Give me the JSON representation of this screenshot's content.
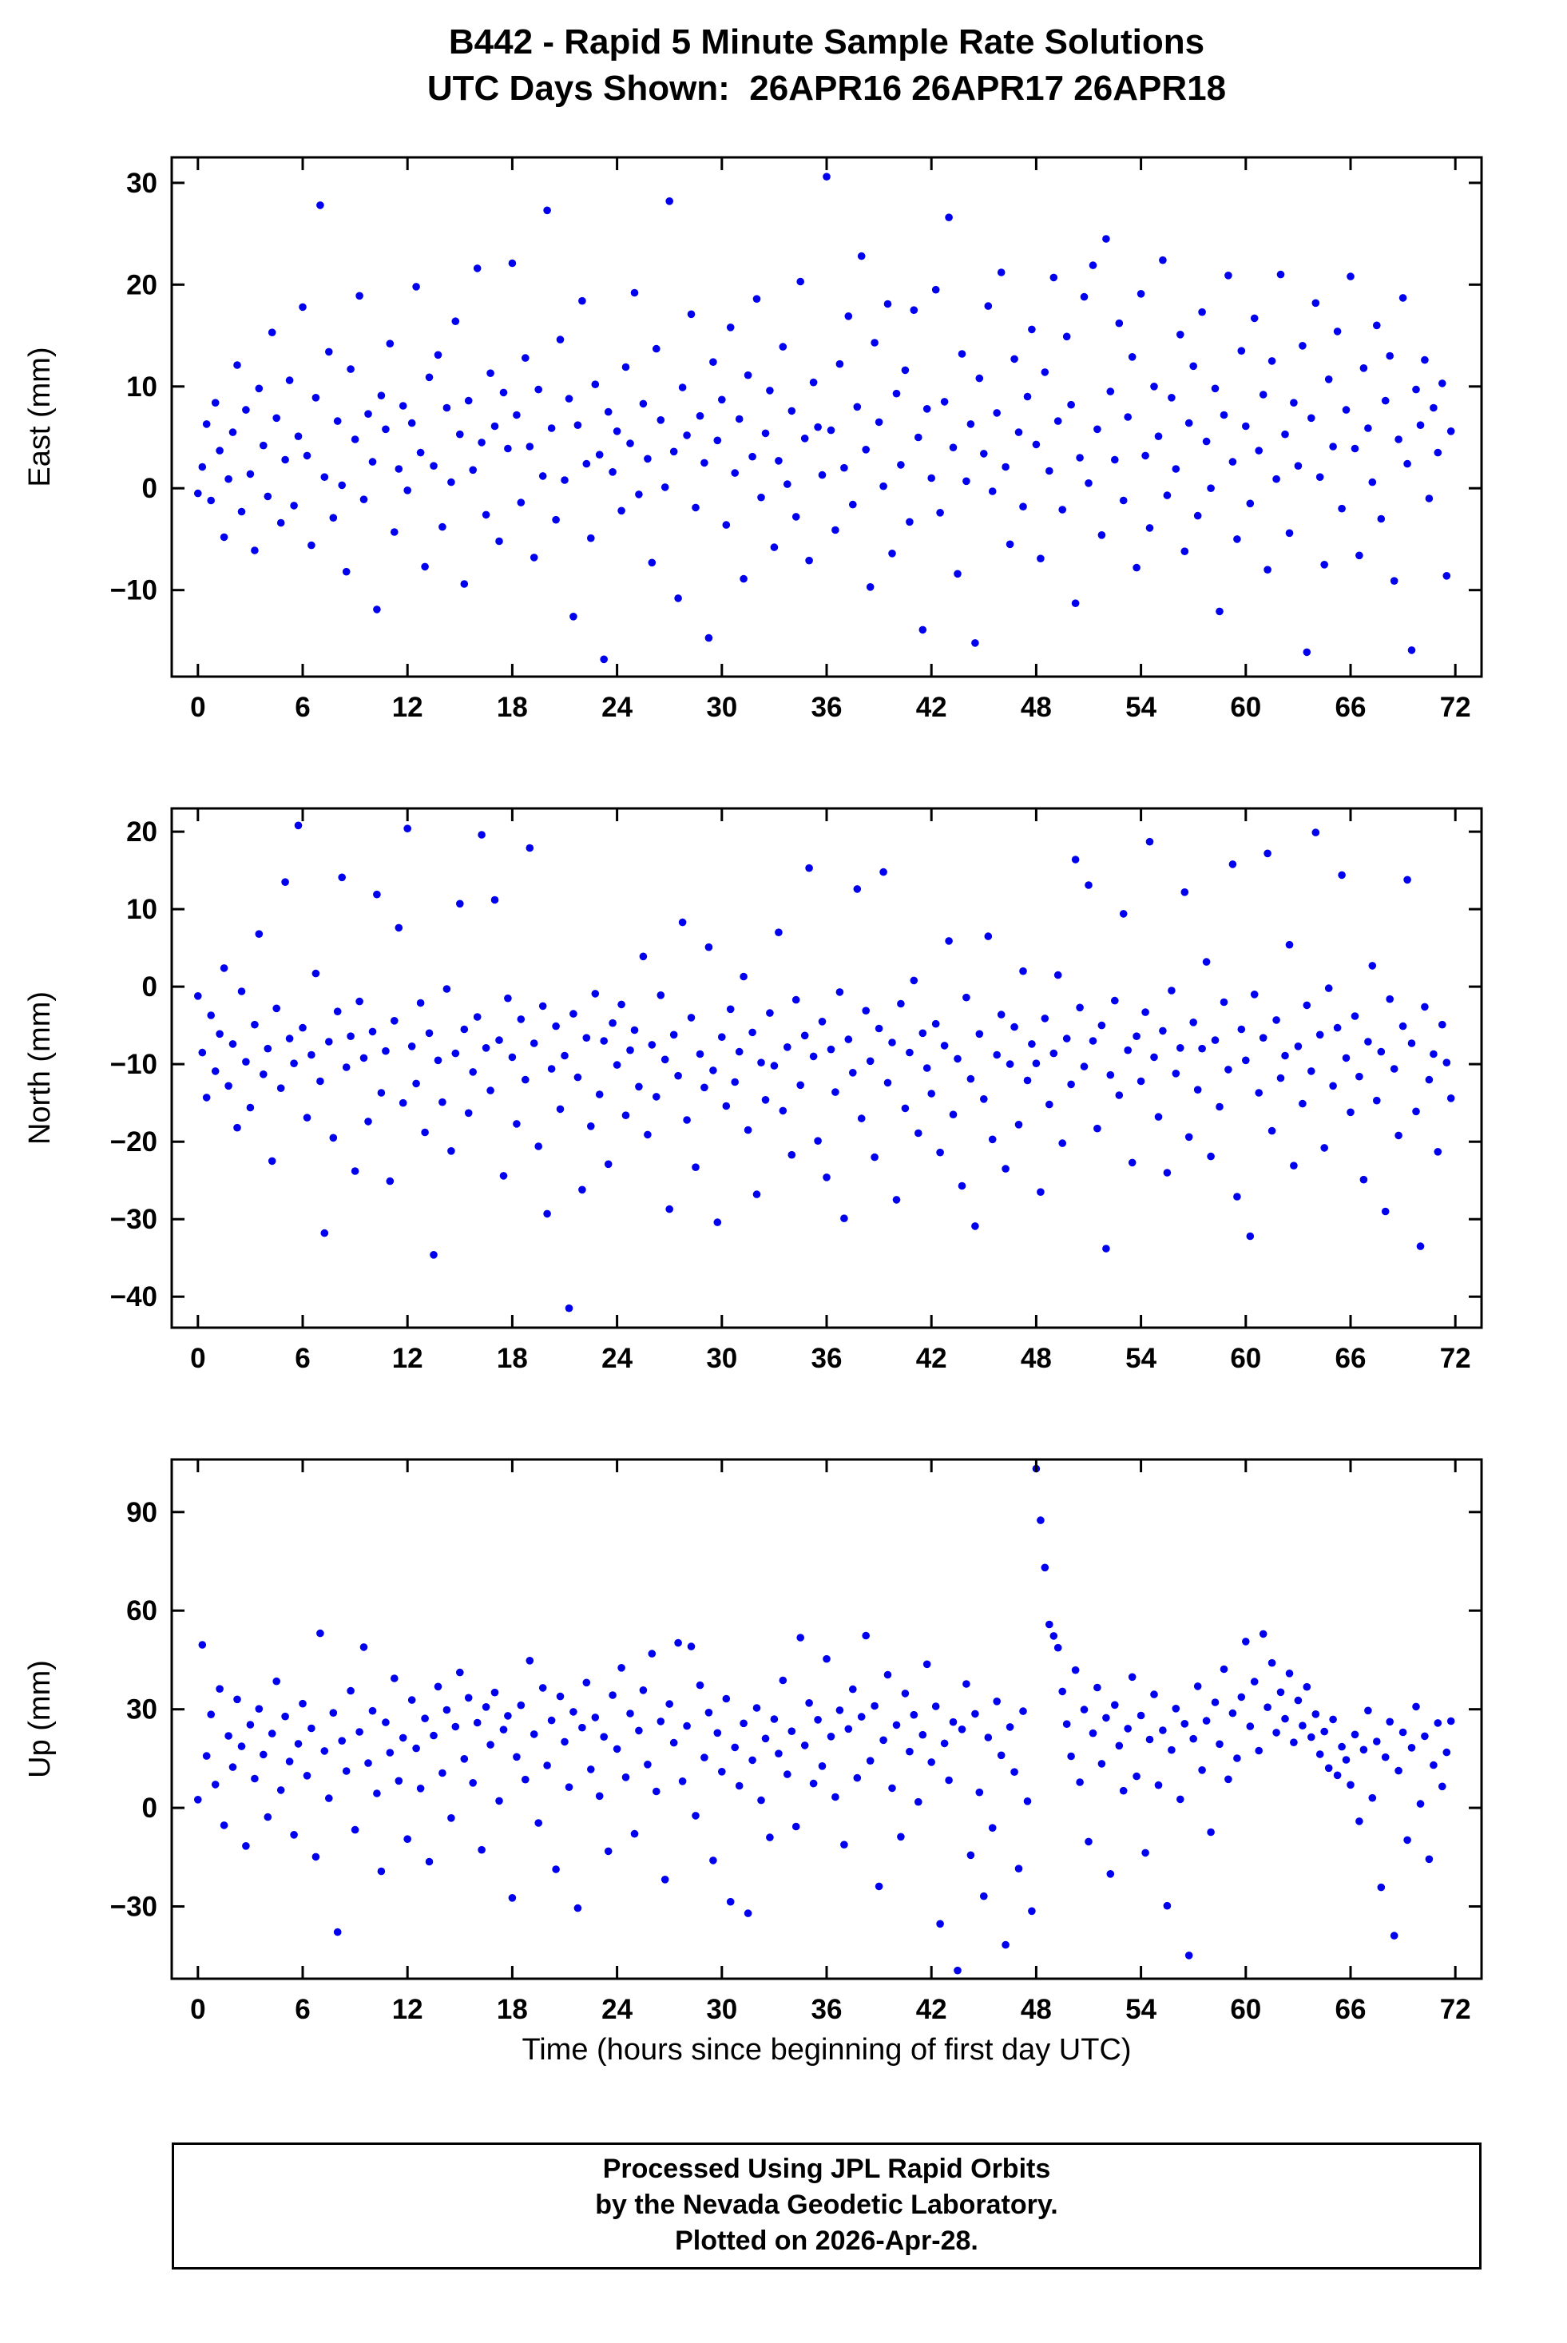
{
  "header": {
    "title_line1": "B442 - Rapid 5 Minute Sample Rate Solutions",
    "title_line2": "UTC Days Shown:  26APR16 26APR17 26APR18"
  },
  "xaxis": {
    "label": "Time (hours since beginning of first day UTC)",
    "ticks": [
      0,
      6,
      12,
      18,
      24,
      30,
      36,
      42,
      48,
      54,
      60,
      66,
      72
    ],
    "lim": [
      -1.5,
      73.5
    ]
  },
  "footer": {
    "line1": "Processed Using JPL Rapid Orbits",
    "line2": "by the Nevada Geodetic Laboratory.",
    "line3": "Plotted on 2026-Apr-28."
  },
  "style": {
    "point_color": "#0000ee",
    "frame_color": "#000000",
    "background": "#ffffff"
  },
  "chart_data": [
    {
      "type": "scatter",
      "name": "east",
      "ylabel": "East (mm)",
      "yticks": [
        -10,
        0,
        10,
        20,
        30
      ],
      "ylim": [
        -18.5,
        32.5
      ],
      "x_start": 0,
      "x_step": 0.25,
      "values": [
        -0.5,
        2.1,
        6.3,
        -1.2,
        8.4,
        3.7,
        -4.8,
        0.9,
        5.5,
        12.1,
        -2.3,
        7.7,
        1.4,
        -6.1,
        9.8,
        4.2,
        -0.8,
        15.3,
        6.9,
        -3.4,
        2.8,
        10.6,
        -1.7,
        5.1,
        17.8,
        3.2,
        -5.6,
        8.9,
        27.8,
        1.1,
        13.4,
        -2.9,
        6.6,
        0.3,
        -8.2,
        11.7,
        4.8,
        18.9,
        -1.1,
        7.3,
        2.6,
        -11.9,
        9.1,
        5.8,
        14.2,
        -4.3,
        1.9,
        8.1,
        -0.2,
        6.4,
        19.8,
        3.5,
        -7.7,
        10.9,
        2.2,
        13.1,
        -3.8,
        7.9,
        0.6,
        16.4,
        5.3,
        -9.4,
        8.6,
        1.8,
        21.6,
        4.5,
        -2.6,
        11.3,
        6.1,
        -5.2,
        9.4,
        3.9,
        22.1,
        7.2,
        -1.4,
        12.8,
        4.1,
        -6.8,
        9.7,
        1.2,
        27.3,
        5.9,
        -3.1,
        14.6,
        0.8,
        8.8,
        -12.6,
        6.2,
        18.4,
        2.4,
        -4.9,
        10.2,
        3.3,
        -16.8,
        7.5,
        1.6,
        5.6,
        -2.2,
        11.9,
        4.4,
        19.2,
        -0.6,
        8.3,
        2.9,
        -7.3,
        13.7,
        6.7,
        0.1,
        28.2,
        3.6,
        -10.8,
        9.9,
        5.2,
        17.1,
        -1.9,
        7.1,
        2.5,
        -14.7,
        12.4,
        4.7,
        8.7,
        -3.6,
        15.8,
        1.5,
        6.8,
        -8.9,
        11.1,
        3.1,
        18.6,
        -0.9,
        5.4,
        9.6,
        -5.8,
        2.7,
        13.9,
        0.4,
        7.6,
        -2.8,
        20.3,
        4.9,
        -7.1,
        10.4,
        6.0,
        1.3,
        30.6,
        5.7,
        -4.1,
        12.2,
        2.0,
        16.9,
        -1.6,
        8.0,
        22.8,
        3.8,
        -9.7,
        14.3,
        6.5,
        0.2,
        18.1,
        -6.4,
        9.3,
        2.3,
        11.6,
        -3.3,
        17.5,
        5.0,
        -13.9,
        7.8,
        1.0,
        19.5,
        -2.4,
        8.5,
        26.6,
        4.0,
        -8.4,
        13.2,
        0.7,
        6.3,
        -15.2,
        10.8,
        3.4,
        17.9,
        -0.3,
        7.4,
        21.2,
        2.1,
        -5.5,
        12.7,
        5.5,
        -1.8,
        9.0,
        15.6,
        4.3,
        -6.9,
        11.4,
        1.7,
        20.7,
        6.6,
        -2.1,
        14.9,
        8.2,
        -11.3,
        3.0,
        18.8,
        0.5,
        21.9,
        5.8,
        -4.6,
        24.5,
        9.5,
        2.8,
        16.2,
        -1.2,
        7.0,
        12.9,
        -7.8,
        19.1,
        3.2,
        -3.9,
        10.0,
        5.1,
        22.4,
        -0.7,
        8.9,
        1.9,
        15.1,
        -6.2,
        6.4,
        12.0,
        -2.7,
        17.3,
        4.6,
        0.0,
        9.8,
        -12.1,
        7.2,
        20.9,
        2.6,
        -5.0,
        13.5,
        6.1,
        -1.5,
        16.7,
        3.7,
        9.2,
        -8.0,
        12.5,
        0.9,
        21.0,
        5.3,
        -4.4,
        8.4,
        2.2,
        14.0,
        -16.1,
        6.9,
        18.2,
        1.1,
        -7.5,
        10.7,
        4.1,
        15.4,
        -2.0,
        7.7,
        20.8,
        3.9,
        -6.6,
        11.8,
        5.9,
        0.6,
        16.0,
        -3.0,
        8.6,
        13.0,
        -9.1,
        4.8,
        18.7,
        2.4,
        -15.9,
        9.7,
        6.2,
        12.6,
        -1.0,
        7.9,
        3.5,
        10.3,
        -8.6,
        5.6
      ]
    },
    {
      "type": "scatter",
      "name": "north",
      "ylabel": "North (mm)",
      "yticks": [
        -40,
        -30,
        -20,
        -10,
        0,
        10,
        20
      ],
      "ylim": [
        -44,
        23
      ],
      "x_start": 0,
      "x_step": 0.25,
      "values": [
        -1.2,
        -8.5,
        -14.3,
        -3.7,
        -10.9,
        -6.1,
        2.4,
        -12.8,
        -7.4,
        -18.2,
        -0.6,
        -9.7,
        -15.6,
        -4.9,
        6.8,
        -11.3,
        -8.0,
        -22.5,
        -2.8,
        -13.1,
        13.5,
        -6.7,
        -9.9,
        20.8,
        -5.3,
        -16.9,
        -8.8,
        1.7,
        -12.2,
        -31.8,
        -7.1,
        -19.5,
        -3.2,
        14.1,
        -10.4,
        -6.4,
        -23.8,
        -1.9,
        -9.2,
        -17.4,
        -5.8,
        11.9,
        -13.7,
        -8.3,
        -25.1,
        -4.4,
        7.6,
        -15.0,
        20.4,
        -7.7,
        -12.5,
        -2.1,
        -18.8,
        -6.0,
        -34.6,
        -9.5,
        -14.9,
        -0.3,
        -21.2,
        -8.6,
        10.7,
        -5.5,
        -16.3,
        -11.0,
        -3.9,
        19.6,
        -7.9,
        -13.4,
        11.2,
        -6.9,
        -24.4,
        -1.5,
        -9.1,
        -17.7,
        -4.2,
        -12.0,
        17.9,
        -7.3,
        -20.6,
        -2.5,
        -29.3,
        -10.6,
        -5.1,
        -15.8,
        -8.9,
        -41.5,
        -3.5,
        -11.7,
        -26.2,
        -6.6,
        -18.0,
        -0.9,
        -13.9,
        -7.0,
        -22.9,
        -4.7,
        -10.1,
        -2.3,
        -16.6,
        -8.2,
        -5.6,
        -12.9,
        3.9,
        -19.1,
        -7.5,
        -14.2,
        -1.1,
        -9.4,
        -28.7,
        -6.2,
        -11.5,
        8.3,
        -17.2,
        -4.0,
        -23.3,
        -8.7,
        -13.0,
        5.1,
        -10.8,
        -30.4,
        -6.5,
        -15.4,
        -2.9,
        -12.3,
        -8.4,
        1.3,
        -18.5,
        -5.9,
        -26.8,
        -9.8,
        -14.6,
        -3.4,
        -10.2,
        7.0,
        -16.0,
        -7.8,
        -21.7,
        -1.7,
        -12.7,
        -6.3,
        15.3,
        -9.0,
        -19.9,
        -4.5,
        -24.6,
        -8.1,
        -13.6,
        -0.7,
        -29.9,
        -6.8,
        -11.1,
        12.6,
        -17.0,
        -3.1,
        -9.6,
        -22.0,
        -5.4,
        14.8,
        -12.4,
        -7.2,
        -27.5,
        -2.2,
        -15.7,
        -8.5,
        0.8,
        -18.9,
        -6.0,
        -10.5,
        -13.8,
        -4.8,
        -21.4,
        -7.6,
        5.9,
        -16.5,
        -9.3,
        -25.7,
        -1.4,
        -11.9,
        -30.9,
        -6.1,
        -14.5,
        6.5,
        -19.7,
        -8.8,
        -3.6,
        -23.5,
        -10.0,
        -5.2,
        -17.8,
        2.0,
        -12.1,
        -7.4,
        -9.9,
        -26.5,
        -4.1,
        -15.2,
        -8.6,
        1.5,
        -20.2,
        -6.7,
        -12.6,
        16.4,
        -2.7,
        -10.3,
        13.1,
        -7.0,
        -18.3,
        -5.0,
        -33.8,
        -11.4,
        -1.8,
        -14.0,
        9.4,
        -8.2,
        -22.7,
        -6.4,
        -12.2,
        -3.3,
        18.7,
        -9.1,
        -16.8,
        -5.7,
        -24.0,
        -0.5,
        -11.2,
        -7.9,
        12.2,
        -19.4,
        -4.6,
        -13.3,
        -8.0,
        3.2,
        -21.9,
        -6.9,
        -15.5,
        -2.0,
        -10.7,
        15.8,
        -27.1,
        -5.5,
        -9.5,
        -32.2,
        -1.0,
        -13.7,
        -6.6,
        17.2,
        -18.6,
        -4.3,
        -11.8,
        -8.9,
        5.4,
        -23.1,
        -7.7,
        -15.1,
        -2.4,
        -10.9,
        19.9,
        -6.2,
        -20.8,
        -0.2,
        -12.8,
        -5.3,
        14.4,
        -9.2,
        -16.2,
        -3.8,
        -11.6,
        -24.9,
        -7.1,
        2.7,
        -14.7,
        -8.4,
        -29.0,
        -1.6,
        -10.6,
        -19.2,
        -5.1,
        13.8,
        -7.3,
        -16.1,
        -33.5,
        -2.6,
        -12.0,
        -8.7,
        -21.3,
        -4.9,
        -9.8,
        -14.4
      ]
    },
    {
      "type": "scatter",
      "name": "up",
      "ylabel": "Up (mm)",
      "yticks": [
        -30,
        0,
        30,
        60,
        90
      ],
      "ylim": [
        -52,
        106
      ],
      "x_start": 0,
      "x_step": 0.25,
      "values": [
        2.5,
        49.6,
        15.8,
        28.4,
        7.1,
        36.2,
        -5.3,
        21.9,
        12.4,
        33.0,
        18.7,
        -11.6,
        25.3,
        8.9,
        30.1,
        16.2,
        -2.8,
        22.6,
        38.5,
        5.4,
        27.8,
        14.1,
        -8.2,
        19.5,
        31.7,
        9.8,
        24.2,
        -14.9,
        53.1,
        17.3,
        2.9,
        28.9,
        -37.8,
        20.4,
        11.2,
        35.6,
        -6.7,
        23.1,
        48.9,
        13.6,
        29.5,
        4.4,
        -19.3,
        26.0,
        16.8,
        39.4,
        8.2,
        21.3,
        -9.5,
        32.8,
        18.1,
        5.9,
        27.2,
        -16.4,
        22.0,
        36.9,
        10.6,
        29.8,
        -3.1,
        24.7,
        41.2,
        14.9,
        33.5,
        7.6,
        25.9,
        -12.8,
        30.7,
        19.2,
        35.1,
        2.1,
        23.8,
        28.0,
        -27.4,
        15.5,
        31.2,
        8.6,
        44.8,
        22.4,
        -4.6,
        36.5,
        12.9,
        26.6,
        -18.7,
        33.9,
        20.1,
        6.3,
        29.2,
        -30.5,
        24.4,
        38.1,
        11.7,
        27.5,
        3.6,
        21.6,
        -13.2,
        34.3,
        17.9,
        42.6,
        9.3,
        28.7,
        -7.9,
        23.5,
        35.8,
        13.2,
        46.9,
        5.0,
        26.3,
        -21.8,
        31.6,
        19.8,
        50.2,
        8.1,
        24.9,
        49.1,
        -2.4,
        37.3,
        15.3,
        29.0,
        -16.0,
        22.8,
        11.0,
        33.2,
        -28.6,
        18.4,
        6.7,
        25.7,
        -32.1,
        14.5,
        30.4,
        2.3,
        21.1,
        -9.0,
        27.0,
        16.5,
        38.8,
        10.2,
        23.3,
        -5.7,
        51.8,
        19.0,
        31.9,
        7.4,
        26.8,
        12.7,
        45.3,
        21.7,
        3.3,
        29.7,
        -11.2,
        24.0,
        36.1,
        9.1,
        27.7,
        52.4,
        14.3,
        31.0,
        -23.9,
        20.6,
        40.5,
        6.0,
        25.2,
        -8.8,
        34.8,
        17.1,
        28.3,
        1.8,
        22.2,
        43.7,
        13.9,
        30.9,
        -35.3,
        19.6,
        8.4,
        26.1,
        -49.5,
        23.9,
        37.7,
        -14.4,
        28.6,
        4.7,
        -26.9,
        21.4,
        -6.1,
        32.4,
        16.0,
        -41.7,
        24.6,
        10.9,
        -18.5,
        29.4,
        2.0,
        -31.4,
        103.2,
        87.5,
        73.1,
        55.8,
        52.3,
        48.7,
        35.4,
        25.5,
        15.7,
        41.9,
        7.8,
        29.9,
        -10.3,
        22.7,
        36.6,
        13.4,
        27.4,
        -20.1,
        31.3,
        18.9,
        5.2,
        24.1,
        39.8,
        9.6,
        28.1,
        -13.7,
        20.8,
        34.5,
        6.9,
        23.6,
        -29.8,
        17.6,
        30.2,
        2.6,
        25.6,
        -44.9,
        21.0,
        37.0,
        11.5,
        26.5,
        -7.4,
        32.1,
        19.4,
        42.2,
        8.7,
        28.8,
        15.1,
        33.7,
        50.6,
        24.8,
        38.4,
        17.4,
        52.9,
        30.6,
        44.1,
        22.9,
        35.2,
        27.1,
        40.9,
        19.9,
        32.7,
        25.0,
        36.8,
        21.5,
        28.5,
        16.3,
        23.2,
        12.1,
        26.9,
        9.9,
        18.6,
        14.6,
        7.0,
        22.3,
        -4.1,
        17.7,
        29.6,
        3.0,
        20.2,
        -24.2,
        15.4,
        26.2,
        -38.9,
        11.3,
        23.0,
        -9.8,
        18.3,
        30.8,
        1.2,
        21.8,
        -15.6,
        13.0,
        25.8,
        6.5,
        16.9,
        26.4
      ]
    }
  ]
}
